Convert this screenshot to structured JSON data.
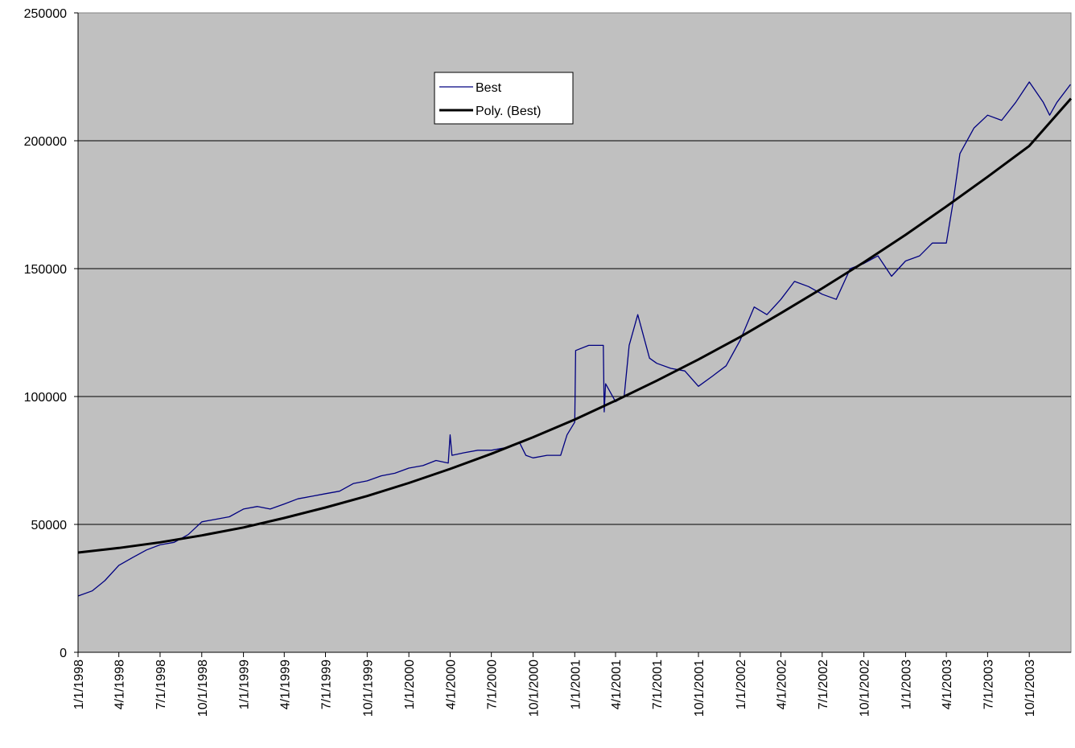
{
  "chart_data": {
    "type": "line",
    "ylim": [
      0,
      250000
    ],
    "yticks": [
      0,
      50000,
      100000,
      150000,
      200000,
      250000
    ],
    "grid": true,
    "xlim": [
      "1/1/1998",
      "1/1/2004"
    ],
    "xticks": [
      "1/1/1998",
      "4/1/1998",
      "7/1/1998",
      "10/1/1998",
      "1/1/1999",
      "4/1/1999",
      "7/1/1999",
      "10/1/1999",
      "1/1/2000",
      "4/1/2000",
      "7/1/2000",
      "10/1/2000",
      "1/1/2001",
      "4/1/2001",
      "7/1/2001",
      "10/1/2001",
      "1/1/2002",
      "4/1/2002",
      "7/1/2002",
      "10/1/2002",
      "1/1/2003",
      "4/1/2003",
      "7/1/2003",
      "10/1/2003"
    ],
    "background": "#c0c0c0",
    "series": [
      {
        "name": "Best",
        "color": "#000080",
        "width": 1.3,
        "x": [
          "1/1/1998",
          "2/1/1998",
          "3/1/1998",
          "4/1/1998",
          "5/1/1998",
          "6/1/1998",
          "7/1/1998",
          "8/1/1998",
          "9/1/1998",
          "10/1/1998",
          "11/1/1998",
          "12/1/1998",
          "1/1/1999",
          "2/1/1999",
          "3/1/1999",
          "4/1/1999",
          "5/1/1999",
          "6/1/1999",
          "7/1/1999",
          "8/1/1999",
          "9/1/1999",
          "10/1/1999",
          "11/1/1999",
          "12/1/1999",
          "1/1/2000",
          "2/1/2000",
          "3/1/2000",
          "3/28/2000",
          "4/1/2000",
          "4/5/2000",
          "5/1/2000",
          "6/1/2000",
          "7/1/2000",
          "8/1/2000",
          "9/1/2000",
          "9/15/2000",
          "10/1/2000",
          "11/1/2000",
          "12/1/2000",
          "12/15/2000",
          "1/1/2001",
          "1/3/2001",
          "2/1/2001",
          "3/5/2001",
          "3/7/2001",
          "3/10/2001",
          "4/1/2001",
          "4/20/2001",
          "5/1/2001",
          "5/20/2001",
          "6/15/2001",
          "7/1/2001",
          "8/1/2001",
          "9/1/2001",
          "10/1/2001",
          "11/1/2001",
          "12/1/2001",
          "1/1/2002",
          "2/1/2002",
          "3/1/2002",
          "4/1/2002",
          "5/1/2002",
          "6/1/2002",
          "7/1/2002",
          "8/1/2002",
          "9/1/2002",
          "10/1/2002",
          "11/1/2002",
          "12/1/2002",
          "1/1/2003",
          "2/1/2003",
          "3/1/2003",
          "4/1/2003",
          "4/15/2003",
          "5/1/2003",
          "6/1/2003",
          "7/1/2003",
          "8/1/2003",
          "9/1/2003",
          "10/1/2003",
          "11/1/2003",
          "11/15/2003",
          "12/1/2003",
          "12/31/2003"
        ],
        "values": [
          22000,
          24000,
          28000,
          34000,
          37000,
          40000,
          42000,
          43000,
          46000,
          51000,
          52000,
          53000,
          56000,
          57000,
          56000,
          58000,
          60000,
          61000,
          62000,
          63000,
          66000,
          67000,
          69000,
          70000,
          72000,
          73000,
          75000,
          74000,
          85000,
          77000,
          78000,
          79000,
          79000,
          80000,
          82000,
          77000,
          76000,
          77000,
          77000,
          85000,
          90000,
          118000,
          120000,
          120000,
          94000,
          105000,
          98000,
          100000,
          120000,
          132000,
          115000,
          113000,
          111000,
          110000,
          104000,
          108000,
          112000,
          122000,
          135000,
          132000,
          138000,
          145000,
          143000,
          140000,
          138000,
          150000,
          152000,
          155000,
          147000,
          153000,
          155000,
          160000,
          160000,
          175000,
          195000,
          205000,
          210000,
          208000,
          215000,
          223000,
          215000,
          210000,
          215000,
          222000
        ]
      },
      {
        "name": "Poly. (Best)",
        "color": "#000000",
        "width": 3,
        "x": [
          "1/1/1998",
          "4/1/1998",
          "7/1/1998",
          "10/1/1998",
          "1/1/1999",
          "4/1/1999",
          "7/1/1999",
          "10/1/1999",
          "1/1/2000",
          "4/1/2000",
          "7/1/2000",
          "10/1/2000",
          "1/1/2001",
          "4/1/2001",
          "7/1/2001",
          "10/1/2001",
          "1/1/2002",
          "4/1/2002",
          "7/1/2002",
          "10/1/2002",
          "1/1/2003",
          "4/1/2003",
          "7/1/2003",
          "10/1/2003",
          "1/1/2004"
        ],
        "values": [
          39000,
          40800,
          43000,
          45700,
          48800,
          52500,
          56600,
          61100,
          66200,
          71700,
          77600,
          84100,
          91000,
          98400,
          106200,
          114500,
          123300,
          132600,
          142300,
          152500,
          163200,
          174300,
          185900,
          198000,
          216500
        ]
      }
    ]
  }
}
